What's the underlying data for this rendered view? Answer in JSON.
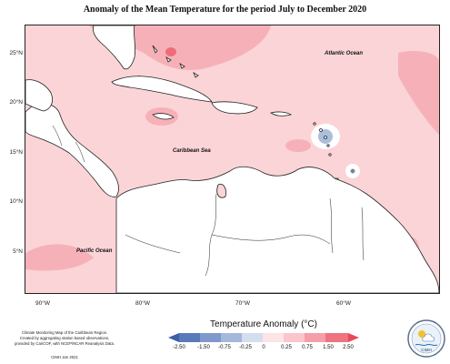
{
  "title": "Anomaly of the Mean Temperature for the period July to December 2020",
  "map": {
    "lat_labels": [
      "25°N",
      "20°N",
      "15°N",
      "10°N",
      "5°N"
    ],
    "lon_labels": [
      "90°W",
      "80°W",
      "70°W",
      "60°W"
    ],
    "ocean_labels": {
      "atlantic": "Atlantic Ocean",
      "caribbean": "Caribbean Sea",
      "pacific": "Pacific Ocean"
    },
    "colors": {
      "base_anomaly": "#fbd4d8",
      "warm_anomaly": "#f6b1b8",
      "hot_anomaly": "#ee6c7a",
      "cool_anomaly": "#a9bfdc",
      "near_zero": "#ffffff",
      "land": "#ffffff"
    }
  },
  "legend": {
    "title": "Temperature Anomaly (°C)",
    "ticks": [
      "-2.50",
      "-1.50",
      "-0.75",
      "-0.25",
      "0",
      "0.25",
      "0.75",
      "1.50",
      "2.50"
    ],
    "colors": [
      "#3d5ea8",
      "#6f8cc7",
      "#94abd4",
      "#c6d3e8",
      "#ffffff",
      "#fde4e6",
      "#f8bcc2",
      "#f28b96",
      "#e8485a"
    ]
  },
  "credits": {
    "lines": [
      "Climate Monitoring Map of the Caribbean Region.",
      "Created by aggregating station based observations,",
      "provided by CariCOF, with NCEP/NCAR Reanalysis Data."
    ],
    "footer": "CIMH  Jan 2021",
    "logo_text": "CIMH"
  }
}
